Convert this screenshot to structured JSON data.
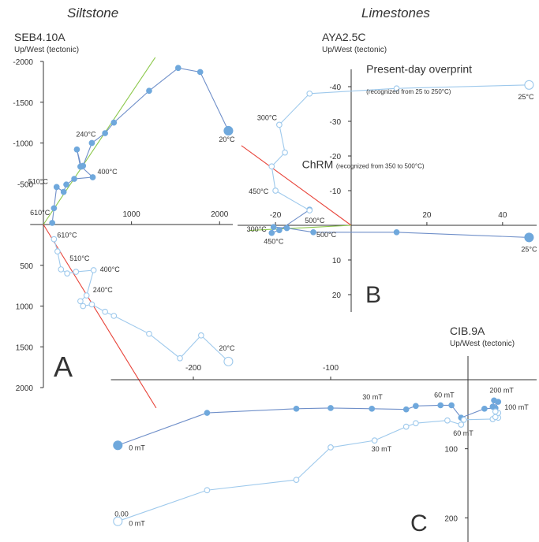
{
  "headers": {
    "left": "Siltstone",
    "right": "Limestones"
  },
  "colors": {
    "axis": "#333333",
    "dark": "#6f8fc9",
    "dark_fill": "#6fa8dc",
    "light": "#9ec9ec",
    "red": "#e8443a",
    "green": "#8cc84b"
  },
  "chart_data": [
    {
      "type": "scatter",
      "panel_letter": "A",
      "title": "SEB4.10A",
      "subtitle": "Up/West (tectonic)",
      "xlim": [
        -150,
        2150
      ],
      "ylim": [
        -2000,
        2000
      ],
      "x_ticks": [
        1000,
        2000
      ],
      "y_ticks": [
        -2000,
        -1500,
        -1000,
        -500,
        500,
        1000,
        1500,
        2000
      ],
      "series": [
        {
          "style": "filled",
          "points": [
            [
              2100,
              -1150
            ],
            [
              1780,
              -1870
            ],
            [
              1530,
              -1920
            ],
            [
              1200,
              -1640
            ],
            [
              800,
              -1250
            ],
            [
              700,
              -1120
            ],
            [
              550,
              -1000
            ],
            [
              450,
              -720
            ],
            [
              420,
              -710
            ],
            [
              380,
              -920
            ],
            [
              430,
              -710
            ],
            [
              560,
              -580
            ],
            [
              350,
              -560
            ],
            [
              260,
              -490
            ],
            [
              230,
              -400
            ],
            [
              150,
              -460
            ],
            [
              120,
              -200
            ],
            [
              100,
              -20
            ]
          ],
          "labels": [
            {
              "text": "20°C",
              "x": 2100,
              "y": -1150,
              "dx": -12,
              "dy": 14
            },
            {
              "text": "240°C",
              "x": 550,
              "y": -1000,
              "dx": -20,
              "dy": -8
            },
            {
              "text": "400°C",
              "x": 560,
              "y": -580,
              "dx": 6,
              "dy": -4
            },
            {
              "text": "510°C",
              "x": 150,
              "y": -460,
              "dx": -36,
              "dy": -4
            },
            {
              "text": "610°C",
              "x": 100,
              "y": -20,
              "dx": -28,
              "dy": -10
            }
          ]
        },
        {
          "style": "open",
          "points": [
            [
              2100,
              1680
            ],
            [
              1790,
              1360
            ],
            [
              1550,
              1640
            ],
            [
              1200,
              1340
            ],
            [
              800,
              1120
            ],
            [
              700,
              1070
            ],
            [
              550,
              980
            ],
            [
              450,
              1000
            ],
            [
              420,
              940
            ],
            [
              490,
              870
            ],
            [
              570,
              560
            ],
            [
              370,
              580
            ],
            [
              270,
              600
            ],
            [
              200,
              550
            ],
            [
              160,
              330
            ],
            [
              120,
              180
            ]
          ],
          "labels": [
            {
              "text": "20°C",
              "x": 2100,
              "y": 1680,
              "dx": -12,
              "dy": -14
            },
            {
              "text": "240°C",
              "x": 490,
              "y": 870,
              "dx": 8,
              "dy": -4
            },
            {
              "text": "400°C",
              "x": 570,
              "y": 560,
              "dx": 8,
              "dy": 2
            },
            {
              "text": "510°C",
              "x": 370,
              "y": 580,
              "dx": -8,
              "dy": -14
            },
            {
              "text": "610°C",
              "x": 120,
              "y": 180,
              "dx": 4,
              "dy": -2
            }
          ]
        }
      ],
      "lines": [
        {
          "style": "green",
          "x1": 0,
          "y1": 0,
          "x2": 1270,
          "y2": -2050
        },
        {
          "style": "red",
          "x1": 0,
          "y1": 0,
          "x2": 1280,
          "y2": 2250
        }
      ]
    },
    {
      "type": "scatter",
      "panel_letter": "B",
      "title": "AYA2.5C",
      "subtitle": "Up/West (tectonic)",
      "xlim": [
        -30,
        49
      ],
      "ylim": [
        -45,
        25
      ],
      "x_ticks": [
        -20,
        20,
        40
      ],
      "y_ticks": [
        -40,
        -30,
        -20,
        -10,
        10,
        20
      ],
      "series": [
        {
          "style": "filled",
          "points": [
            [
              47,
              3.5
            ],
            [
              12,
              2
            ],
            [
              -10,
              2
            ],
            [
              -17,
              0.8
            ],
            [
              -20.5,
              0.5
            ],
            [
              -21,
              2.2
            ],
            [
              -19,
              1.4
            ],
            [
              -11,
              -4.5
            ]
          ],
          "labels": [
            {
              "text": "25°C",
              "x": 47,
              "y": 3.5,
              "dx": -10,
              "dy": 18
            },
            {
              "text": "450°C",
              "x": -21,
              "y": 2.2,
              "dx": -10,
              "dy": 14
            },
            {
              "text": "500°C",
              "x": -10,
              "y": 2,
              "dx": 4,
              "dy": 6
            },
            {
              "text": "300°C",
              "x": -20.5,
              "y": 0.5,
              "dx": -34,
              "dy": 6
            }
          ]
        },
        {
          "style": "open",
          "points": [
            [
              47,
              -40.5
            ],
            [
              12,
              -39.5
            ],
            [
              -11,
              -38
            ],
            [
              -19,
              -29
            ],
            [
              -17.5,
              -21
            ],
            [
              -21,
              -17
            ],
            [
              -20,
              -10
            ],
            [
              -11,
              -4.3
            ]
          ],
          "labels": [
            {
              "text": "25°C",
              "x": 47,
              "y": -40.5,
              "dx": -14,
              "dy": 18
            },
            {
              "text": "300°C",
              "x": -19,
              "y": -29,
              "dx": -28,
              "dy": -6
            },
            {
              "text": "450°C",
              "x": -20,
              "y": -10,
              "dx": -34,
              "dy": 4
            },
            {
              "text": "500°C",
              "x": -11,
              "y": -4.3,
              "dx": -6,
              "dy": 16
            }
          ]
        }
      ],
      "lines": [
        {
          "style": "red",
          "x1": -29,
          "y1": -23,
          "x2": 0,
          "y2": 0
        },
        {
          "style": "green",
          "x1": -27,
          "y1": 1.5,
          "x2": 0,
          "y2": 0
        }
      ],
      "annotations": [
        {
          "text": "Present-day overprint",
          "x": 4,
          "y": -44,
          "size": 14
        },
        {
          "text": "(recognized from 25 to 250°C)",
          "x": 4,
          "y": -38,
          "size": 8
        },
        {
          "text": "ChRM",
          "x": -13,
          "y": -16.5,
          "size": 14
        },
        {
          "text": "(recognized from 350 to 500°C)",
          "x": -4,
          "y": -16.5,
          "size": 8
        }
      ]
    },
    {
      "type": "scatter",
      "panel_letter": "C",
      "title": "CIB.9A",
      "subtitle": "Up/West (tectonic)",
      "xlim": [
        -260,
        50
      ],
      "ylim": [
        -18,
        235
      ],
      "x_ticks": [
        -200,
        -100
      ],
      "y_ticks": [
        100,
        200
      ],
      "series": [
        {
          "style": "filled",
          "points": [
            [
              -255,
              95
            ],
            [
              -190,
              48
            ],
            [
              -125,
              42
            ],
            [
              -100,
              41
            ],
            [
              -70,
              42
            ],
            [
              -45,
              43
            ],
            [
              -38,
              38
            ],
            [
              -20,
              37
            ],
            [
              -12,
              37
            ],
            [
              -5,
              55
            ],
            [
              12,
              42
            ],
            [
              20,
              41
            ],
            [
              22,
              32
            ],
            [
              18,
              39
            ],
            [
              19,
              30
            ]
          ],
          "labels": [
            {
              "text": "0 mT",
              "x": -255,
              "y": 95,
              "dx": 14,
              "dy": 6
            },
            {
              "text": "30 mT",
              "x": -70,
              "y": 42,
              "dx": -12,
              "dy": -12
            },
            {
              "text": "60 mT",
              "x": -12,
              "y": 37,
              "dx": -22,
              "dy": -10
            },
            {
              "text": "200 mT",
              "x": 18,
              "y": 30,
              "dx": -4,
              "dy": -10
            },
            {
              "text": "100 mT",
              "x": 22,
              "y": 32,
              "dx": 8,
              "dy": 10
            }
          ]
        },
        {
          "style": "open",
          "points": [
            [
              -255,
              205
            ],
            [
              -190,
              160
            ],
            [
              -125,
              145
            ],
            [
              -100,
              98
            ],
            [
              -68,
              88
            ],
            [
              -45,
              68
            ],
            [
              -38,
              63
            ],
            [
              -15,
              59
            ],
            [
              -5,
              65
            ],
            [
              -3,
              58
            ],
            [
              18,
              57
            ],
            [
              22,
              55
            ],
            [
              20,
              54
            ],
            [
              22,
              48
            ],
            [
              20,
              46
            ]
          ],
          "labels": [
            {
              "text": "0 mT",
              "x": -255,
              "y": 205,
              "dx": 14,
              "dy": 6
            },
            {
              "text": "0.00",
              "x": -255,
              "y": 205,
              "dx": -4,
              "dy": -6
            },
            {
              "text": "30 mT",
              "x": -68,
              "y": 88,
              "dx": -4,
              "dy": 14
            },
            {
              "text": "60 mT",
              "x": -5,
              "y": 65,
              "dx": -10,
              "dy": 14
            }
          ]
        }
      ]
    }
  ]
}
